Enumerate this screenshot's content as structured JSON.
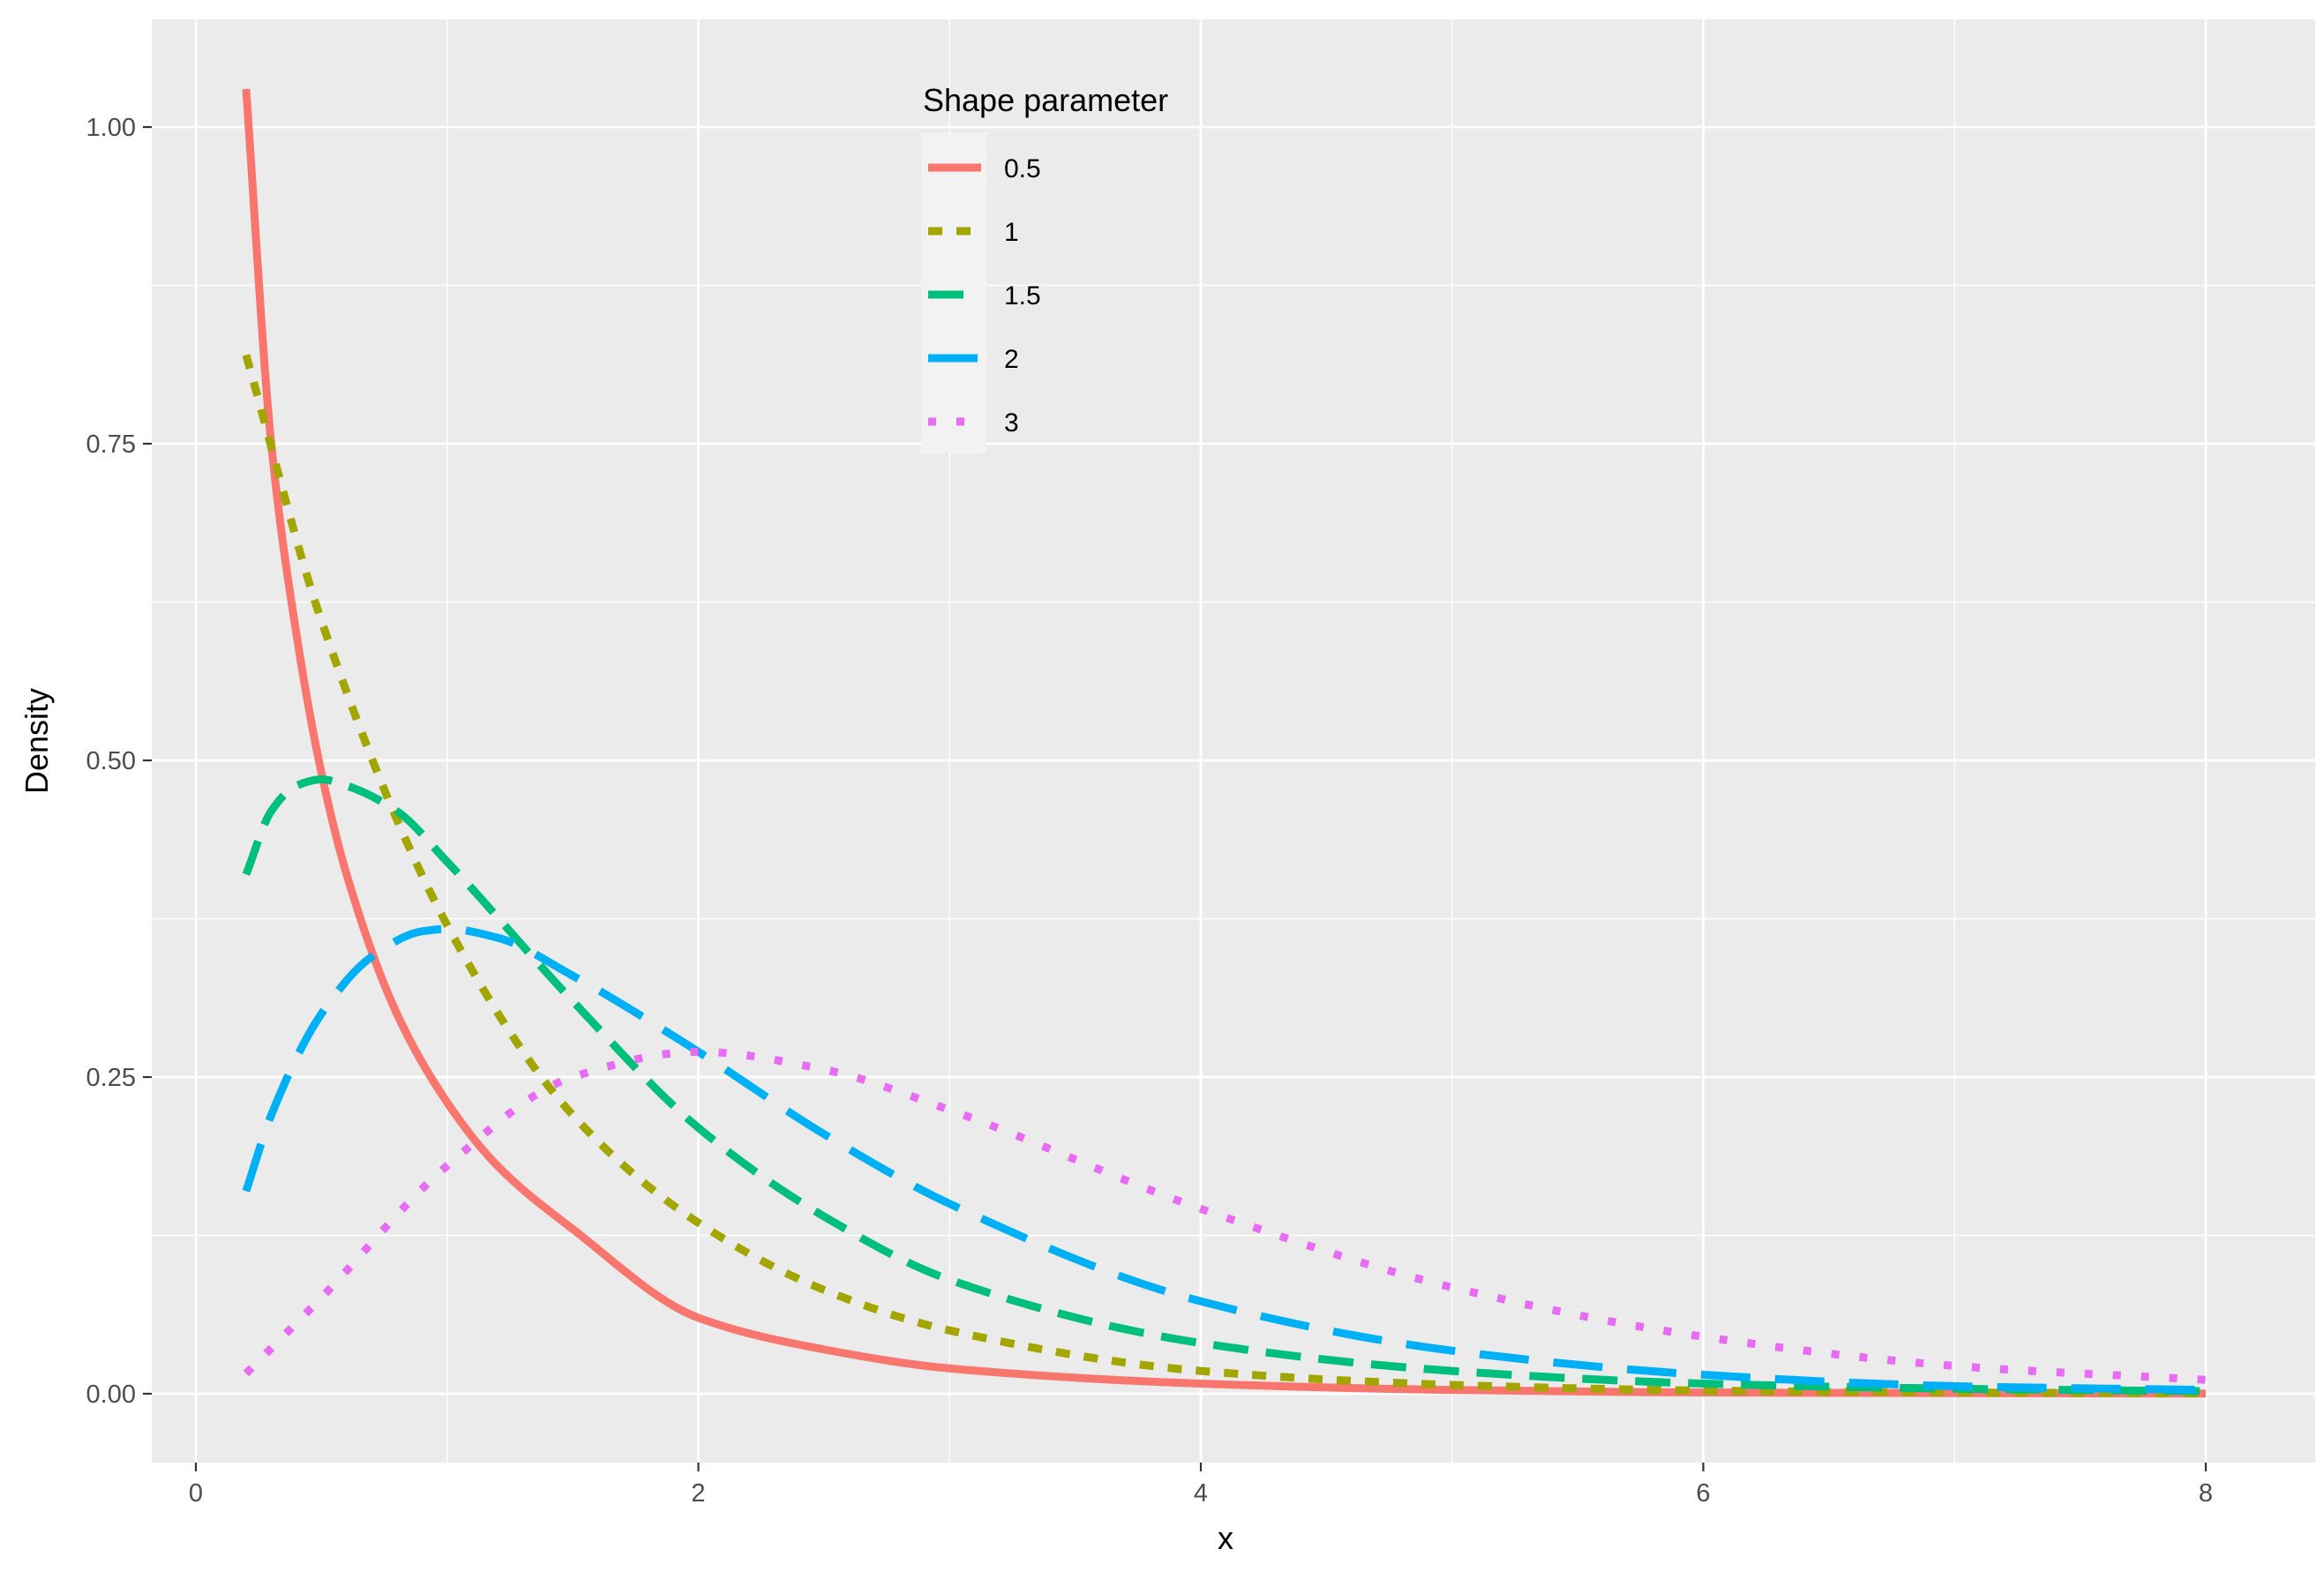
{
  "chart_data": {
    "type": "line",
    "title": "",
    "xlabel": "x",
    "ylabel": "Density",
    "xlim": [
      0,
      8
    ],
    "ylim": [
      0,
      1.0
    ],
    "x_ticks": [
      {
        "value": 0,
        "label": "0"
      },
      {
        "value": 2,
        "label": "2"
      },
      {
        "value": 4,
        "label": "4"
      },
      {
        "value": 6,
        "label": "6"
      },
      {
        "value": 8,
        "label": "8"
      }
    ],
    "y_ticks": [
      {
        "value": 0,
        "label": "0.00"
      },
      {
        "value": 0.25,
        "label": "0.25"
      },
      {
        "value": 0.5,
        "label": "0.50"
      },
      {
        "value": 0.75,
        "label": "0.75"
      },
      {
        "value": 1.0,
        "label": "1.00"
      }
    ],
    "grid": true,
    "legend": {
      "title": "Shape parameter",
      "placement": "top-center-inside"
    },
    "x_range": [
      0.2,
      8
    ],
    "series": [
      {
        "name": "0.5",
        "color": "#F8766D",
        "dash": "solid",
        "x": [
          0.2,
          0.3,
          0.4,
          0.5,
          0.6,
          0.8,
          1.0,
          1.2,
          1.5,
          2.0,
          2.5,
          3.0,
          4.0,
          5.0,
          6.0,
          7.0,
          8.0
        ],
        "y": [
          1.03,
          0.75,
          0.6,
          0.49,
          0.41,
          0.3,
          0.23,
          0.18,
          0.13,
          0.06,
          0.035,
          0.02,
          0.008,
          0.003,
          0.001,
          0.0005,
          0.0002
        ]
      },
      {
        "name": "1",
        "color": "#A3A500",
        "dash": "short-dash",
        "x": [
          0.2,
          0.5,
          1.0,
          1.5,
          2.0,
          2.5,
          3.0,
          4.0,
          5.0,
          6.0,
          7.0,
          8.0
        ],
        "y": [
          0.82,
          0.61,
          0.37,
          0.22,
          0.135,
          0.082,
          0.05,
          0.018,
          0.007,
          0.0025,
          0.001,
          0.0003
        ]
      },
      {
        "name": "1.5",
        "color": "#00BF7D",
        "dash": "long-dash",
        "x": [
          0.2,
          0.3,
          0.4,
          0.5,
          0.6,
          0.8,
          1.0,
          1.5,
          2.0,
          2.5,
          3.0,
          4.0,
          5.0,
          6.0,
          7.0,
          8.0
        ],
        "y": [
          0.41,
          0.46,
          0.48,
          0.485,
          0.48,
          0.46,
          0.42,
          0.31,
          0.21,
          0.14,
          0.09,
          0.04,
          0.018,
          0.008,
          0.004,
          0.002
        ]
      },
      {
        "name": "2",
        "color": "#00B0F6",
        "dash": "longer-dash",
        "x": [
          0.2,
          0.3,
          0.5,
          0.7,
          0.9,
          1.0,
          1.2,
          1.5,
          2.0,
          2.5,
          3.0,
          4.0,
          5.0,
          6.0,
          7.0,
          8.0
        ],
        "y": [
          0.16,
          0.22,
          0.3,
          0.345,
          0.365,
          0.367,
          0.36,
          0.33,
          0.27,
          0.205,
          0.15,
          0.073,
          0.034,
          0.015,
          0.006,
          0.003
        ]
      },
      {
        "name": "3",
        "color": "#E76BF3",
        "dash": "dotted",
        "x": [
          0.2,
          0.5,
          1.0,
          1.5,
          2.0,
          2.5,
          3.0,
          4.0,
          5.0,
          6.0,
          7.0,
          8.0
        ],
        "y": [
          0.016,
          0.076,
          0.18,
          0.25,
          0.27,
          0.256,
          0.224,
          0.146,
          0.084,
          0.045,
          0.022,
          0.011
        ]
      }
    ]
  }
}
